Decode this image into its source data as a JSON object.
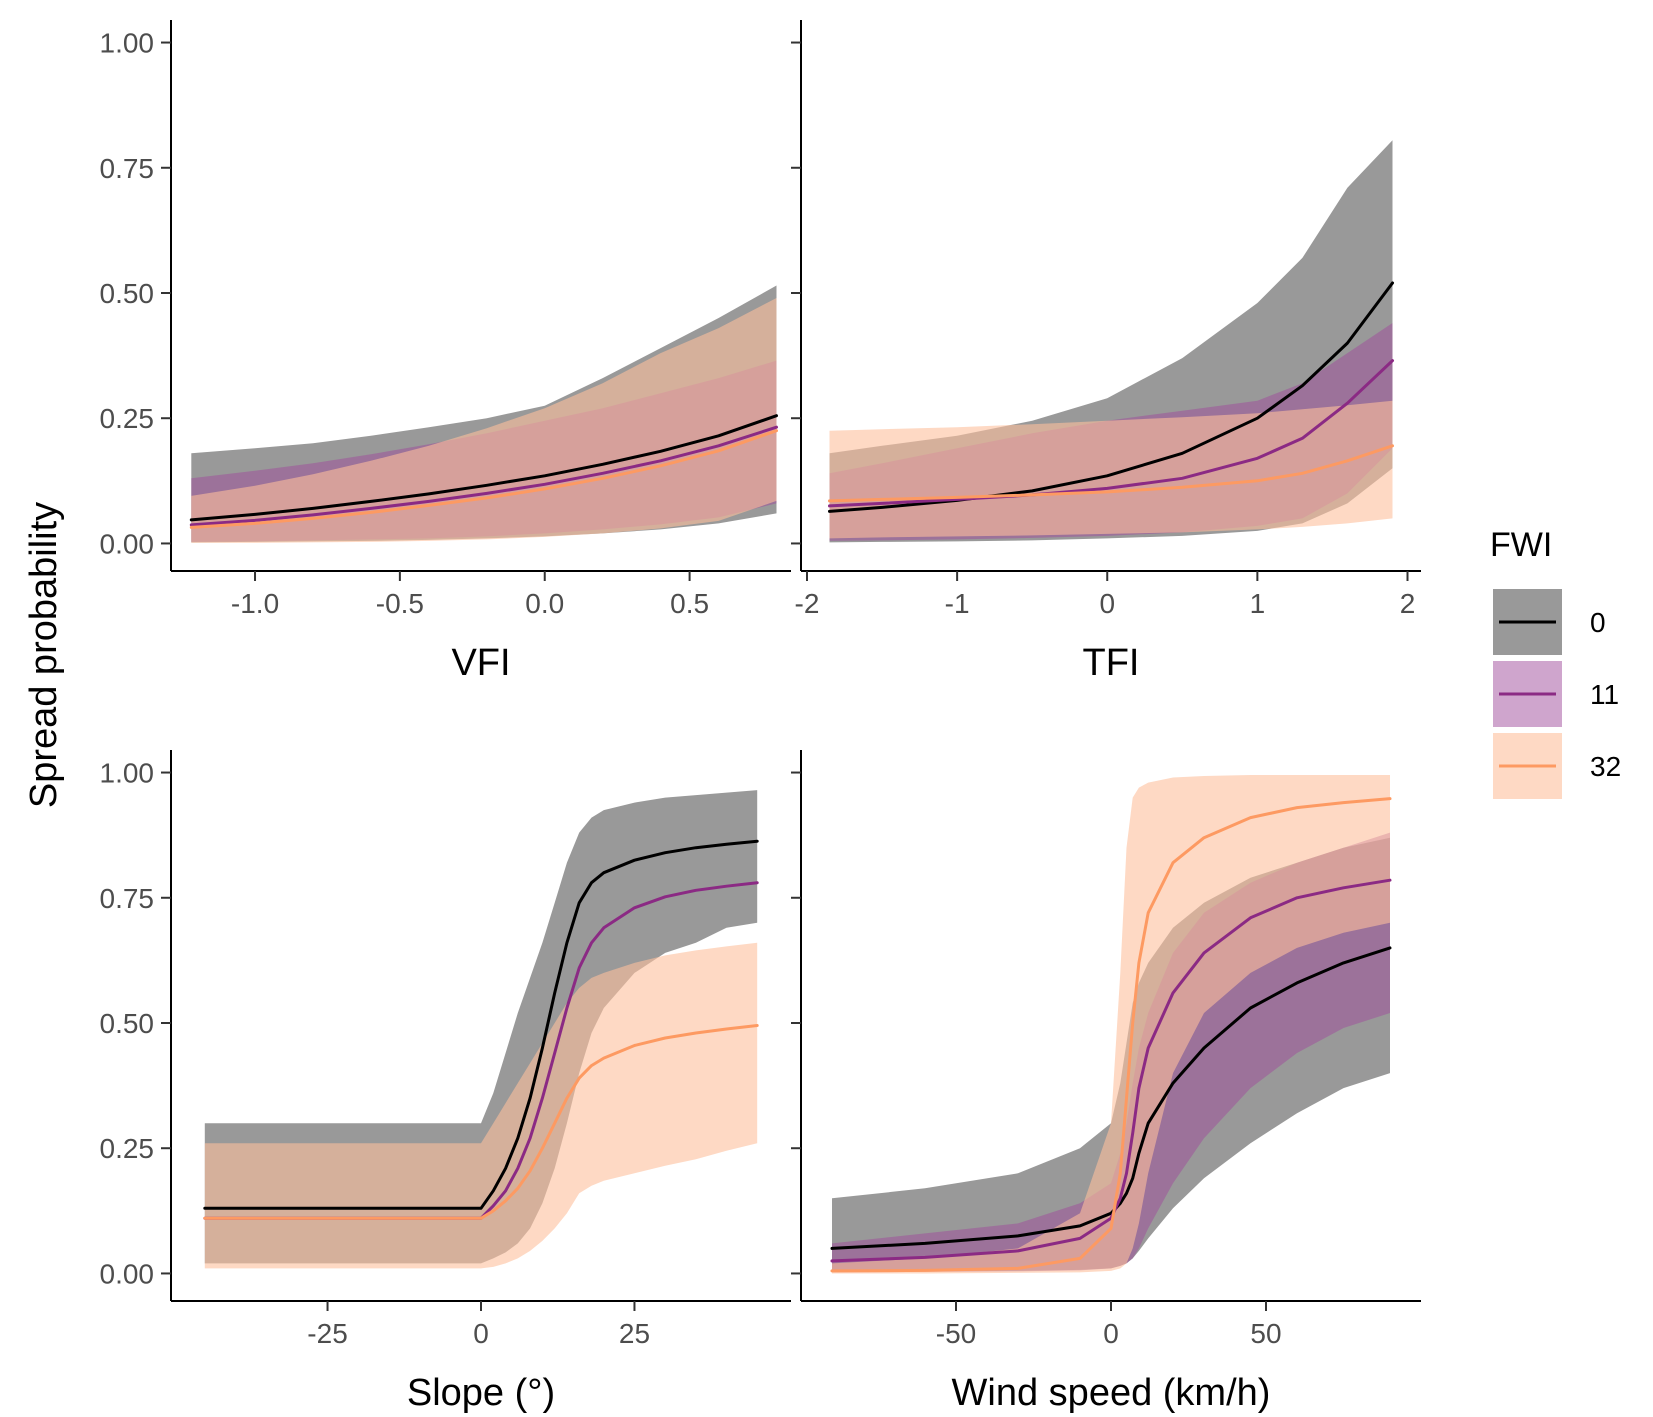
{
  "y_axis_title": "Spread probability",
  "legend": {
    "title": "FWI",
    "items": [
      {
        "label": "0",
        "line_color": "#000000",
        "band_color": "#999999",
        "band_opacity": 1.0
      },
      {
        "label": "11",
        "line_color": "#8b2a84",
        "band_color": "#a04c9c",
        "band_opacity": 0.5
      },
      {
        "label": "32",
        "line_color": "#fd9a62",
        "band_color": "#fdbf9c",
        "band_opacity": 0.6
      }
    ]
  },
  "chart_data": [
    {
      "type": "line",
      "xlabel": "VFI",
      "ylabel": "Spread probability",
      "xlim": [
        -1.29,
        0.85
      ],
      "ylim": [
        -0.055,
        1.045
      ],
      "xticks": [
        -1.0,
        -0.5,
        0.0,
        0.5
      ],
      "xtick_labels": [
        "-1.0",
        "-0.5",
        "0.0",
        "0.5"
      ],
      "yticks": [
        0,
        0.25,
        0.5,
        0.75,
        1.0
      ],
      "ytick_labels": [
        "0.00",
        "0.25",
        "0.50",
        "0.75",
        "1.00"
      ],
      "show_ytick_labels": true,
      "grid": false,
      "x": [
        -1.22,
        -1.0,
        -0.8,
        -0.6,
        -0.4,
        -0.2,
        0.0,
        0.2,
        0.4,
        0.6,
        0.8
      ],
      "series": [
        {
          "name": "0",
          "y": [
            0.047,
            0.058,
            0.07,
            0.084,
            0.099,
            0.116,
            0.135,
            0.158,
            0.184,
            0.215,
            0.255
          ],
          "lower": [
            0.002,
            0.003,
            0.004,
            0.005,
            0.007,
            0.01,
            0.014,
            0.02,
            0.028,
            0.04,
            0.06
          ],
          "upper": [
            0.18,
            0.19,
            0.2,
            0.215,
            0.232,
            0.25,
            0.275,
            0.33,
            0.39,
            0.45,
            0.515
          ]
        },
        {
          "name": "11",
          "y": [
            0.037,
            0.046,
            0.057,
            0.07,
            0.084,
            0.1,
            0.118,
            0.14,
            0.165,
            0.195,
            0.232
          ],
          "lower": [
            0.003,
            0.004,
            0.006,
            0.008,
            0.01,
            0.014,
            0.02,
            0.028,
            0.038,
            0.052,
            0.08
          ],
          "upper": [
            0.13,
            0.145,
            0.16,
            0.178,
            0.198,
            0.22,
            0.245,
            0.27,
            0.3,
            0.33,
            0.365
          ]
        },
        {
          "name": "32",
          "y": [
            0.032,
            0.04,
            0.05,
            0.062,
            0.076,
            0.091,
            0.109,
            0.13,
            0.155,
            0.185,
            0.225
          ],
          "lower": [
            0.001,
            0.001,
            0.002,
            0.003,
            0.005,
            0.008,
            0.013,
            0.02,
            0.03,
            0.045,
            0.085
          ],
          "upper": [
            0.095,
            0.115,
            0.138,
            0.165,
            0.195,
            0.23,
            0.27,
            0.32,
            0.38,
            0.43,
            0.49
          ]
        }
      ]
    },
    {
      "type": "line",
      "xlabel": "TFI",
      "ylabel": "",
      "xlim": [
        -2.04,
        2.09
      ],
      "ylim": [
        -0.055,
        1.045
      ],
      "xticks": [
        -2,
        -1,
        0,
        1,
        2
      ],
      "xtick_labels": [
        "-2",
        "-1",
        "0",
        "1",
        "2"
      ],
      "yticks": [
        0,
        0.25,
        0.5,
        0.75,
        1.0
      ],
      "ytick_labels": [
        "0.00",
        "0.25",
        "0.50",
        "0.75",
        "1.00"
      ],
      "show_ytick_labels": false,
      "grid": false,
      "x": [
        -1.85,
        -1.5,
        -1.0,
        -0.5,
        0.0,
        0.5,
        1.0,
        1.3,
        1.6,
        1.9
      ],
      "series": [
        {
          "name": "0",
          "y": [
            0.064,
            0.072,
            0.086,
            0.105,
            0.135,
            0.18,
            0.25,
            0.315,
            0.4,
            0.52
          ],
          "lower": [
            0.002,
            0.003,
            0.004,
            0.006,
            0.01,
            0.015,
            0.025,
            0.04,
            0.08,
            0.15
          ],
          "upper": [
            0.18,
            0.195,
            0.215,
            0.245,
            0.29,
            0.37,
            0.48,
            0.57,
            0.71,
            0.805
          ]
        },
        {
          "name": "11",
          "y": [
            0.075,
            0.08,
            0.088,
            0.097,
            0.11,
            0.13,
            0.17,
            0.21,
            0.28,
            0.365
          ],
          "lower": [
            0.005,
            0.006,
            0.008,
            0.011,
            0.015,
            0.022,
            0.035,
            0.05,
            0.1,
            0.19
          ],
          "upper": [
            0.14,
            0.16,
            0.19,
            0.22,
            0.245,
            0.265,
            0.285,
            0.32,
            0.38,
            0.44
          ]
        },
        {
          "name": "32",
          "y": [
            0.085,
            0.088,
            0.092,
            0.097,
            0.103,
            0.112,
            0.125,
            0.14,
            0.165,
            0.195
          ],
          "lower": [
            0.01,
            0.012,
            0.014,
            0.016,
            0.019,
            0.022,
            0.028,
            0.033,
            0.04,
            0.05
          ],
          "upper": [
            0.225,
            0.228,
            0.232,
            0.238,
            0.245,
            0.252,
            0.26,
            0.268,
            0.276,
            0.285
          ]
        }
      ]
    },
    {
      "type": "line",
      "xlabel": "Slope (°)",
      "ylabel": "Spread probability",
      "xlim": [
        -50.5,
        50.5
      ],
      "ylim": [
        -0.055,
        1.045
      ],
      "xticks": [
        -25,
        0,
        25
      ],
      "xtick_labels": [
        "-25",
        "0",
        "25"
      ],
      "yticks": [
        0,
        0.25,
        0.5,
        0.75,
        1.0
      ],
      "ytick_labels": [
        "0.00",
        "0.25",
        "0.50",
        "0.75",
        "1.00"
      ],
      "show_ytick_labels": true,
      "grid": false,
      "x": [
        -45,
        -30,
        -15,
        0,
        2,
        4,
        6,
        8,
        10,
        12,
        14,
        16,
        18,
        20,
        25,
        30,
        35,
        40,
        45
      ],
      "series": [
        {
          "name": "0",
          "y": [
            0.13,
            0.13,
            0.13,
            0.13,
            0.165,
            0.21,
            0.27,
            0.35,
            0.45,
            0.56,
            0.66,
            0.74,
            0.78,
            0.8,
            0.825,
            0.84,
            0.85,
            0.857,
            0.863
          ],
          "lower": [
            0.02,
            0.02,
            0.02,
            0.02,
            0.03,
            0.042,
            0.06,
            0.09,
            0.14,
            0.21,
            0.3,
            0.4,
            0.48,
            0.53,
            0.6,
            0.64,
            0.66,
            0.69,
            0.7
          ],
          "upper": [
            0.3,
            0.3,
            0.3,
            0.3,
            0.36,
            0.44,
            0.52,
            0.59,
            0.66,
            0.74,
            0.82,
            0.88,
            0.91,
            0.925,
            0.94,
            0.95,
            0.955,
            0.96,
            0.965
          ]
        },
        {
          "name": "11",
          "y": [
            0.11,
            0.11,
            0.11,
            0.11,
            0.135,
            0.165,
            0.21,
            0.27,
            0.35,
            0.44,
            0.53,
            0.61,
            0.66,
            0.69,
            0.73,
            0.752,
            0.765,
            0.773,
            0.78
          ]
        },
        {
          "name": "32",
          "y": [
            0.11,
            0.11,
            0.11,
            0.11,
            0.125,
            0.145,
            0.17,
            0.205,
            0.25,
            0.3,
            0.35,
            0.39,
            0.415,
            0.43,
            0.455,
            0.47,
            0.48,
            0.488,
            0.495
          ],
          "lower": [
            0.01,
            0.01,
            0.01,
            0.01,
            0.013,
            0.02,
            0.03,
            0.045,
            0.065,
            0.09,
            0.12,
            0.16,
            0.175,
            0.185,
            0.2,
            0.215,
            0.228,
            0.245,
            0.26
          ],
          "upper": [
            0.26,
            0.26,
            0.26,
            0.26,
            0.3,
            0.34,
            0.38,
            0.42,
            0.46,
            0.5,
            0.54,
            0.57,
            0.59,
            0.6,
            0.62,
            0.635,
            0.645,
            0.653,
            0.66
          ]
        }
      ]
    },
    {
      "type": "line",
      "xlabel": "Wind speed (km/h)",
      "ylabel": "",
      "xlim": [
        -100,
        100
      ],
      "ylim": [
        -0.055,
        1.045
      ],
      "xticks": [
        -50,
        0,
        50
      ],
      "xtick_labels": [
        "-50",
        "0",
        "50"
      ],
      "yticks": [
        0,
        0.25,
        0.5,
        0.75,
        1.0
      ],
      "ytick_labels": [
        "0.00",
        "0.25",
        "0.50",
        "0.75",
        "1.00"
      ],
      "show_ytick_labels": false,
      "grid": false,
      "x": [
        -90,
        -60,
        -30,
        -10,
        0,
        3,
        5,
        7,
        9,
        12,
        20,
        30,
        45,
        60,
        75,
        90
      ],
      "series": [
        {
          "name": "0",
          "y": [
            0.05,
            0.06,
            0.075,
            0.095,
            0.12,
            0.14,
            0.16,
            0.19,
            0.24,
            0.3,
            0.38,
            0.45,
            0.53,
            0.58,
            0.62,
            0.65
          ],
          "lower": [
            0.003,
            0.004,
            0.005,
            0.007,
            0.01,
            0.015,
            0.02,
            0.03,
            0.045,
            0.07,
            0.13,
            0.19,
            0.26,
            0.32,
            0.37,
            0.4
          ],
          "upper": [
            0.15,
            0.17,
            0.2,
            0.25,
            0.3,
            0.38,
            0.46,
            0.54,
            0.58,
            0.62,
            0.69,
            0.74,
            0.79,
            0.82,
            0.85,
            0.87
          ]
        },
        {
          "name": "11",
          "y": [
            0.025,
            0.032,
            0.045,
            0.07,
            0.11,
            0.15,
            0.2,
            0.28,
            0.37,
            0.45,
            0.56,
            0.64,
            0.71,
            0.75,
            0.77,
            0.785
          ],
          "lower": [
            0.002,
            0.003,
            0.004,
            0.006,
            0.01,
            0.015,
            0.02,
            0.03,
            0.05,
            0.09,
            0.18,
            0.27,
            0.37,
            0.44,
            0.49,
            0.52
          ],
          "upper": [
            0.06,
            0.08,
            0.1,
            0.14,
            0.18,
            0.24,
            0.3,
            0.38,
            0.45,
            0.52,
            0.64,
            0.72,
            0.78,
            0.82,
            0.85,
            0.88
          ]
        },
        {
          "name": "32",
          "y": [
            0.005,
            0.006,
            0.01,
            0.03,
            0.09,
            0.2,
            0.35,
            0.5,
            0.62,
            0.72,
            0.82,
            0.87,
            0.91,
            0.93,
            0.94,
            0.948
          ],
          "lower": [
            0.0,
            0.0,
            0.001,
            0.002,
            0.005,
            0.01,
            0.02,
            0.05,
            0.1,
            0.2,
            0.4,
            0.52,
            0.6,
            0.65,
            0.68,
            0.7
          ],
          "upper": [
            0.02,
            0.03,
            0.05,
            0.12,
            0.3,
            0.6,
            0.85,
            0.95,
            0.97,
            0.98,
            0.99,
            0.993,
            0.995,
            0.995,
            0.995,
            0.995
          ]
        }
      ]
    }
  ]
}
